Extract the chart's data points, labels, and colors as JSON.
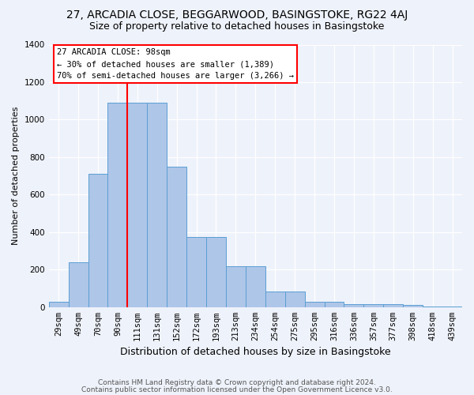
{
  "title1": "27, ARCADIA CLOSE, BEGGARWOOD, BASINGSTOKE, RG22 4AJ",
  "title2": "Size of property relative to detached houses in Basingstoke",
  "xlabel": "Distribution of detached houses by size in Basingstoke",
  "ylabel": "Number of detached properties",
  "footer1": "Contains HM Land Registry data © Crown copyright and database right 2024.",
  "footer2": "Contains public sector information licensed under the Open Government Licence v3.0.",
  "categories": [
    "29sqm",
    "49sqm",
    "70sqm",
    "90sqm",
    "111sqm",
    "131sqm",
    "152sqm",
    "172sqm",
    "193sqm",
    "213sqm",
    "234sqm",
    "254sqm",
    "275sqm",
    "295sqm",
    "316sqm",
    "336sqm",
    "357sqm",
    "377sqm",
    "398sqm",
    "418sqm",
    "439sqm"
  ],
  "bar_values": [
    30,
    240,
    710,
    1090,
    1090,
    1090,
    750,
    375,
    375,
    220,
    220,
    85,
    85,
    30,
    30,
    15,
    15,
    15,
    10,
    5,
    5
  ],
  "bar_color": "#aec6e8",
  "bar_edge_color": "#5a9fd4",
  "vline_x": 3.5,
  "vline_color": "red",
  "annotation_line1": "27 ARCADIA CLOSE: 98sqm",
  "annotation_line2": "← 30% of detached houses are smaller (1,389)",
  "annotation_line3": "70% of semi-detached houses are larger (3,266) →",
  "annotation_box_color": "white",
  "annotation_box_edge_color": "red",
  "ylim": [
    0,
    1400
  ],
  "yticks": [
    0,
    200,
    400,
    600,
    800,
    1000,
    1200,
    1400
  ],
  "background_color": "#eef2fa",
  "grid_color": "white",
  "title1_fontsize": 10,
  "title2_fontsize": 9,
  "ylabel_fontsize": 8,
  "xlabel_fontsize": 9,
  "tick_fontsize": 7.5,
  "annot_fontsize": 7.5,
  "footer_fontsize": 6.5
}
